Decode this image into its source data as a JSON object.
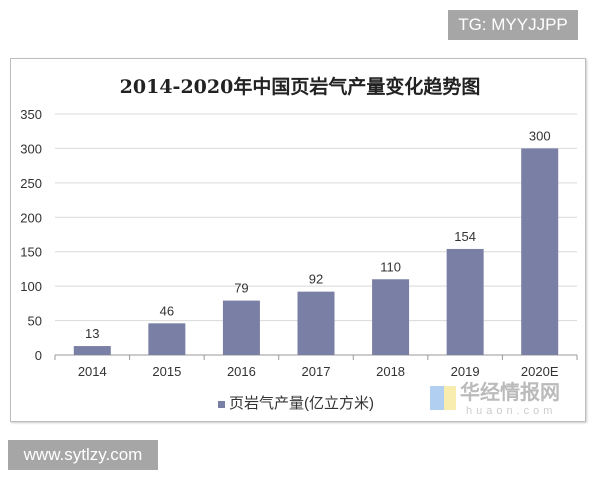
{
  "watermark_top": "TG: MYYJJPP",
  "watermark_bottom": "www.sytlzy.com",
  "logo_text": "华经情报网",
  "logo_sub": "huaon.com",
  "chart_data": {
    "type": "bar",
    "title": "2014-2020年中国页岩气产量变化趋势图",
    "categories": [
      "2014",
      "2015",
      "2016",
      "2017",
      "2018",
      "2019",
      "2020E"
    ],
    "series": [
      {
        "name": "页岩气产量(亿立方米)",
        "values": [
          13,
          46,
          79,
          92,
          110,
          154,
          300
        ],
        "color": "#7a7fa6"
      }
    ],
    "ylim": [
      0,
      350
    ],
    "yticks": [
      0,
      50,
      100,
      150,
      200,
      250,
      300,
      350
    ],
    "grid": true,
    "legend": "bottom",
    "data_labels": true
  }
}
